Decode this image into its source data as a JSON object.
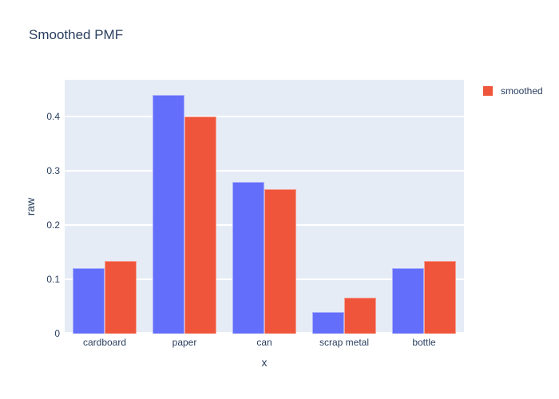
{
  "title": "Smoothed PMF",
  "colors": {
    "raw_series": "#636EFA",
    "smoothed_series": "#EF553B",
    "panel_background": "#E5ECF6",
    "grid": "#FFFFFF",
    "text": "#2A3F5F"
  },
  "legend": {
    "items": [
      {
        "label": "smoothed",
        "color": "#EF553B"
      }
    ]
  },
  "chart_data": {
    "type": "bar",
    "title": "Smoothed PMF",
    "xlabel": "x",
    "ylabel": "raw",
    "categories": [
      "cardboard",
      "paper",
      "can",
      "scrap metal",
      "bottle"
    ],
    "series": [
      {
        "name": "raw",
        "color": "#636EFA",
        "in_legend": false,
        "values": [
          0.12,
          0.44,
          0.28,
          0.04,
          0.12
        ]
      },
      {
        "name": "smoothed",
        "color": "#EF553B",
        "in_legend": true,
        "values": [
          0.1333,
          0.4,
          0.2667,
          0.0667,
          0.1333
        ]
      }
    ],
    "ylim": [
      0,
      0.468
    ],
    "yticks": [
      0,
      0.1,
      0.2,
      0.3,
      0.4
    ],
    "ytick_labels": [
      "0",
      "0.1",
      "0.2",
      "0.3",
      "0.4"
    ],
    "grid": true,
    "legend_position": "right",
    "barmode": "group"
  }
}
